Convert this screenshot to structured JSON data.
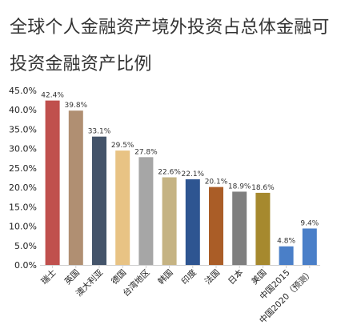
{
  "chart_data": {
    "type": "bar",
    "title": "全球个人金融资产境外投资占总体金融可投资金融资产比例",
    "xlabel": "",
    "ylabel": "",
    "ylim": [
      0,
      45
    ],
    "yticks": [
      0,
      5,
      10,
      15,
      20,
      25,
      30,
      35,
      40,
      45
    ],
    "ytick_labels": [
      "0.0%",
      "5.0%",
      "10.0%",
      "15.0%",
      "20.0%",
      "25.0%",
      "30.0%",
      "35.0%",
      "40.0%",
      "45.0%"
    ],
    "grid": false,
    "legend": "none",
    "categories": [
      "瑞士",
      "英国",
      "澳大利亚",
      "德国",
      "台湾地区",
      "韩国",
      "印度",
      "法国",
      "日本",
      "美国",
      "中国2015",
      "中国2020（预测）"
    ],
    "values": [
      42.4,
      39.8,
      33.1,
      29.5,
      27.8,
      22.6,
      22.1,
      20.1,
      18.9,
      18.6,
      4.8,
      9.4
    ],
    "data_labels": [
      "42.4%",
      "39.8%",
      "33.1%",
      "29.5%",
      "27.8%",
      "22.6%",
      "22.1%",
      "20.1%",
      "18.9%",
      "18.6%",
      "4.8%",
      "9.4%"
    ],
    "colors": [
      "#c0504d",
      "#b08f72",
      "#44546a",
      "#e8c384",
      "#a6a6a6",
      "#c5b383",
      "#2e5591",
      "#aa5d27",
      "#7f7f7f",
      "#a6892e",
      "#4a7fc8",
      "#4a7fc8"
    ]
  }
}
